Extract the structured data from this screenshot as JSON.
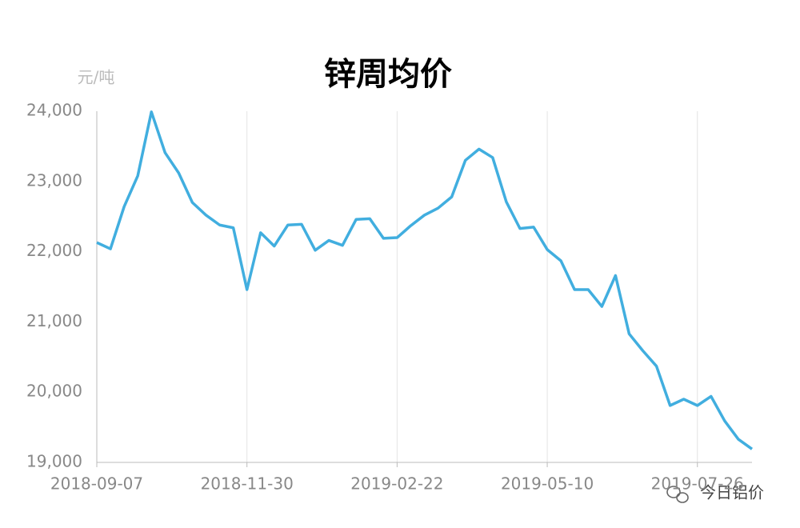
{
  "chart_data": {
    "type": "line",
    "title": "锌周均价",
    "y_label": "元/吨",
    "watermark": "今日铝价",
    "categories": [
      "2018-09-07",
      null,
      null,
      null,
      null,
      null,
      null,
      null,
      null,
      null,
      null,
      "2018-11-30",
      null,
      null,
      null,
      null,
      null,
      null,
      null,
      null,
      null,
      null,
      "2019-02-22",
      null,
      null,
      null,
      null,
      null,
      null,
      null,
      null,
      null,
      null,
      "2019-05-10",
      null,
      null,
      null,
      null,
      null,
      null,
      null,
      null,
      null,
      null,
      "2019-07-26",
      null,
      null,
      null,
      null
    ],
    "series": [
      {
        "name": "锌周均价",
        "color": "#41aedf",
        "values": [
          22130,
          22040,
          22640,
          23080,
          23990,
          23410,
          23120,
          22700,
          22520,
          22380,
          22340,
          21460,
          22270,
          22080,
          22380,
          22390,
          22020,
          22160,
          22090,
          22460,
          22470,
          22190,
          22200,
          22370,
          22520,
          22620,
          22780,
          23300,
          23460,
          23340,
          22710,
          22330,
          22350,
          22030,
          21870,
          21460,
          21460,
          21220,
          21660,
          20830,
          20590,
          20370,
          19810,
          19900,
          19810,
          19940,
          19590,
          19330,
          19190
        ]
      }
    ],
    "ylim": [
      19000,
      24000
    ],
    "yticks": [
      {
        "value": 19000,
        "label": "19,000"
      },
      {
        "value": 20000,
        "label": "20,000"
      },
      {
        "value": 21000,
        "label": "21,000"
      },
      {
        "value": 22000,
        "label": "22,000"
      },
      {
        "value": 23000,
        "label": "23,000"
      },
      {
        "value": 24000,
        "label": "24,000"
      }
    ],
    "grid": true
  }
}
